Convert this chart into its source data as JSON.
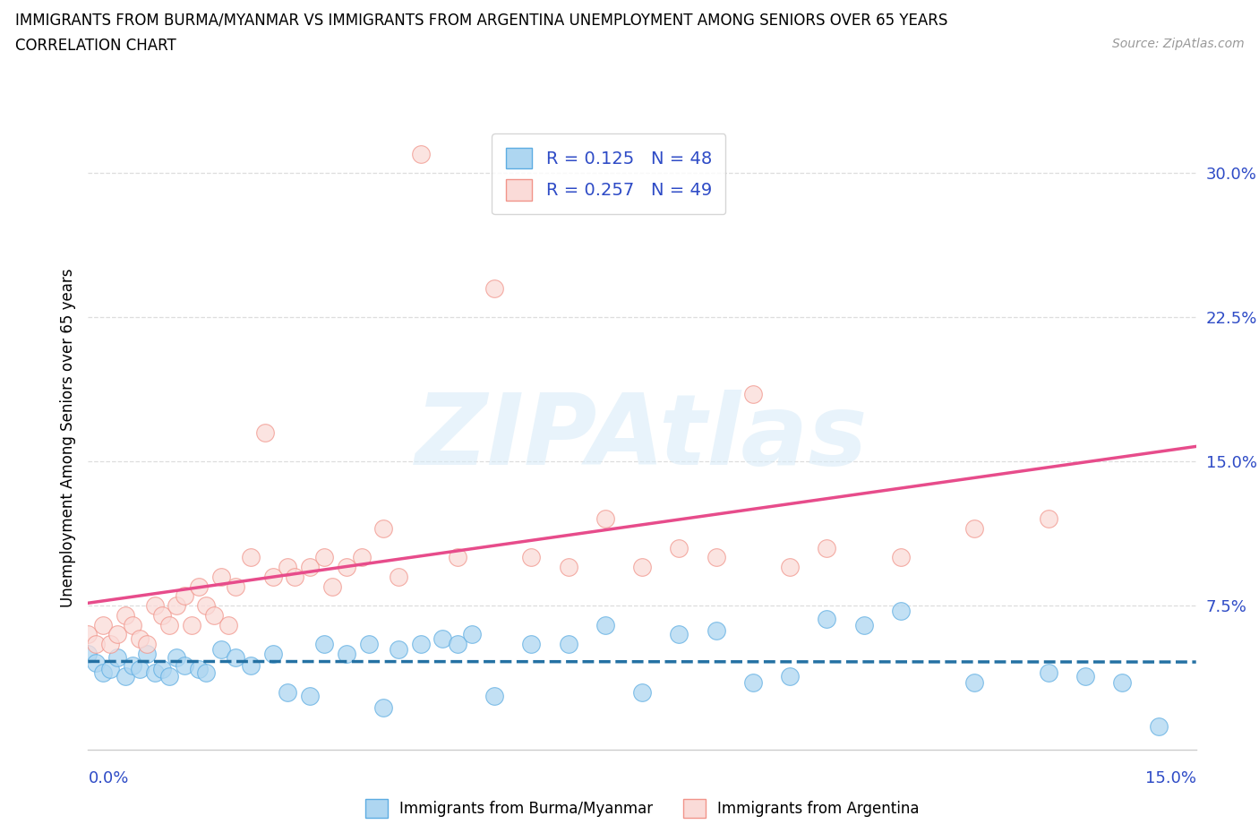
{
  "title_line1": "IMMIGRANTS FROM BURMA/MYANMAR VS IMMIGRANTS FROM ARGENTINA UNEMPLOYMENT AMONG SENIORS OVER 65 YEARS",
  "title_line2": "CORRELATION CHART",
  "source": "Source: ZipAtlas.com",
  "ylabel": "Unemployment Among Seniors over 65 years",
  "ytick_labels": [
    "7.5%",
    "15.0%",
    "22.5%",
    "30.0%"
  ],
  "ytick_values": [
    0.075,
    0.15,
    0.225,
    0.3
  ],
  "xlim": [
    0.0,
    0.15
  ],
  "ylim": [
    0.0,
    0.325
  ],
  "watermark": "ZIPAtlas",
  "burma_color": "#AED6F1",
  "burma_edge_color": "#5DADE2",
  "argentina_color": "#FADBD8",
  "argentina_edge_color": "#F1948A",
  "burma_line_color": "#2471A3",
  "argentina_line_color": "#E74C8B",
  "legend_text_color": "#2E4BC6",
  "grid_color": "#DDDDDD",
  "burma_x": [
    0.0,
    0.001,
    0.002,
    0.003,
    0.004,
    0.005,
    0.006,
    0.007,
    0.008,
    0.009,
    0.01,
    0.011,
    0.012,
    0.013,
    0.015,
    0.016,
    0.018,
    0.02,
    0.022,
    0.025,
    0.027,
    0.03,
    0.032,
    0.035,
    0.038,
    0.04,
    0.042,
    0.045,
    0.048,
    0.05,
    0.052,
    0.055,
    0.06,
    0.065,
    0.07,
    0.075,
    0.08,
    0.085,
    0.09,
    0.095,
    0.1,
    0.105,
    0.11,
    0.12,
    0.13,
    0.135,
    0.14,
    0.145
  ],
  "burma_y": [
    0.05,
    0.045,
    0.04,
    0.042,
    0.048,
    0.038,
    0.044,
    0.042,
    0.05,
    0.04,
    0.042,
    0.038,
    0.048,
    0.044,
    0.042,
    0.04,
    0.052,
    0.048,
    0.044,
    0.05,
    0.03,
    0.028,
    0.055,
    0.05,
    0.055,
    0.022,
    0.052,
    0.055,
    0.058,
    0.055,
    0.06,
    0.028,
    0.055,
    0.055,
    0.065,
    0.03,
    0.06,
    0.062,
    0.035,
    0.038,
    0.068,
    0.065,
    0.072,
    0.035,
    0.04,
    0.038,
    0.035,
    0.012
  ],
  "argentina_x": [
    0.0,
    0.001,
    0.002,
    0.003,
    0.004,
    0.005,
    0.006,
    0.007,
    0.008,
    0.009,
    0.01,
    0.011,
    0.012,
    0.013,
    0.014,
    0.015,
    0.016,
    0.017,
    0.018,
    0.019,
    0.02,
    0.022,
    0.024,
    0.025,
    0.027,
    0.028,
    0.03,
    0.032,
    0.033,
    0.035,
    0.037,
    0.04,
    0.042,
    0.045,
    0.05,
    0.055,
    0.06,
    0.065,
    0.07,
    0.075,
    0.08,
    0.085,
    0.09,
    0.095,
    0.1,
    0.11,
    0.12,
    0.13
  ],
  "argentina_y": [
    0.06,
    0.055,
    0.065,
    0.055,
    0.06,
    0.07,
    0.065,
    0.058,
    0.055,
    0.075,
    0.07,
    0.065,
    0.075,
    0.08,
    0.065,
    0.085,
    0.075,
    0.07,
    0.09,
    0.065,
    0.085,
    0.1,
    0.165,
    0.09,
    0.095,
    0.09,
    0.095,
    0.1,
    0.085,
    0.095,
    0.1,
    0.115,
    0.09,
    0.31,
    0.1,
    0.24,
    0.1,
    0.095,
    0.12,
    0.095,
    0.105,
    0.1,
    0.185,
    0.095,
    0.105,
    0.1,
    0.115,
    0.12
  ]
}
